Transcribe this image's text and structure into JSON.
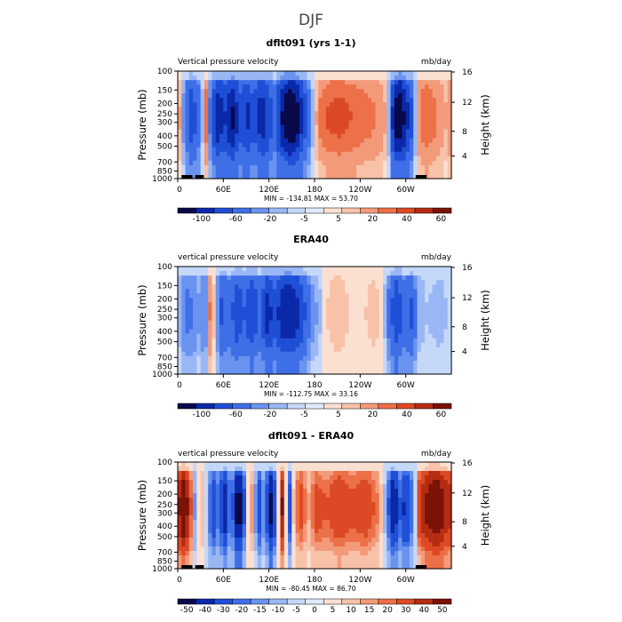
{
  "title": "DJF",
  "colors": {
    "blues": [
      "#08084a",
      "#0b28a8",
      "#1f4fd6",
      "#3f6fe6",
      "#6a93ef",
      "#9ab7f5",
      "#c6d8fa",
      "#dfeafc"
    ],
    "reds": [
      "#fbe0d2",
      "#f8c2a8",
      "#f39a7a",
      "#ec7048",
      "#dc4a25",
      "#b52c12",
      "#7a1206"
    ],
    "nodata": "#cfe2fa"
  },
  "chart_data": [
    {
      "type": "heatmap",
      "title": "dflt091 (yrs 1-1)",
      "variable_label": "Vertical pressure velocity",
      "units": "mb/day",
      "xlabel": "",
      "ylabel": "Pressure (mb)",
      "ylabel_right": "Height (km)",
      "x_ticks": [
        "0",
        "60E",
        "120E",
        "180",
        "120W",
        "60W"
      ],
      "x_tick_values": [
        0,
        60,
        120,
        180,
        240,
        300
      ],
      "xlim": [
        0,
        360
      ],
      "y_ticks": [
        "100",
        "150",
        "200",
        "250",
        "300",
        "400",
        "500",
        "700",
        "850",
        "1000"
      ],
      "y_tick_values": [
        100,
        150,
        200,
        250,
        300,
        400,
        500,
        700,
        850,
        1000
      ],
      "ylim": [
        1000,
        100
      ],
      "y_right_ticks": [
        "16",
        "12",
        "8",
        "4"
      ],
      "y_right_values": [
        16,
        12,
        8,
        4
      ],
      "min_max_text": "MIN = -134.81   MAX =  53.70",
      "min": -134.81,
      "max": 53.7,
      "colorbar_labels": [
        "-100",
        "-60",
        "-20",
        "-5",
        "5",
        "20",
        "40",
        "60"
      ],
      "colorbar_levels": [
        -100,
        -80,
        -60,
        -40,
        -20,
        -10,
        -5,
        0,
        5,
        10,
        20,
        30,
        40,
        50,
        60
      ],
      "lon_profile": [
        [
          0,
          22
        ],
        [
          8,
          -15
        ],
        [
          18,
          -55
        ],
        [
          26,
          -35
        ],
        [
          32,
          -10
        ],
        [
          38,
          30
        ],
        [
          44,
          -40
        ],
        [
          52,
          -75
        ],
        [
          62,
          -60
        ],
        [
          72,
          -85
        ],
        [
          82,
          -50
        ],
        [
          92,
          -65
        ],
        [
          100,
          -45
        ],
        [
          110,
          -75
        ],
        [
          120,
          -55
        ],
        [
          128,
          -30
        ],
        [
          134,
          -70
        ],
        [
          142,
          -95
        ],
        [
          150,
          -110
        ],
        [
          158,
          -85
        ],
        [
          166,
          -55
        ],
        [
          172,
          -30
        ],
        [
          178,
          -5
        ],
        [
          186,
          22
        ],
        [
          198,
          32
        ],
        [
          212,
          35
        ],
        [
          228,
          30
        ],
        [
          245,
          25
        ],
        [
          262,
          20
        ],
        [
          276,
          8
        ],
        [
          282,
          -60
        ],
        [
          290,
          -105
        ],
        [
          298,
          -80
        ],
        [
          308,
          -45
        ],
        [
          316,
          18
        ],
        [
          326,
          30
        ],
        [
          340,
          22
        ],
        [
          352,
          10
        ],
        [
          360,
          22
        ]
      ]
    },
    {
      "type": "heatmap",
      "title": "ERA40",
      "variable_label": "vertical pressure velocity",
      "units": "mb/day",
      "xlabel": "",
      "ylabel": "Pressure (mb)",
      "ylabel_right": "Height (km)",
      "x_ticks": [
        "0",
        "60E",
        "120E",
        "180",
        "120W",
        "60W"
      ],
      "x_tick_values": [
        0,
        60,
        120,
        180,
        240,
        300
      ],
      "xlim": [
        0,
        360
      ],
      "y_ticks": [
        "100",
        "150",
        "200",
        "250",
        "300",
        "400",
        "500",
        "700",
        "850",
        "1000"
      ],
      "y_tick_values": [
        100,
        150,
        200,
        250,
        300,
        400,
        500,
        700,
        850,
        1000
      ],
      "ylim": [
        1000,
        100
      ],
      "y_right_ticks": [
        "16",
        "12",
        "8",
        "4"
      ],
      "y_right_values": [
        16,
        12,
        8,
        4
      ],
      "min_max_text": "MIN = -112.75   MAX =  33.16",
      "min": -112.75,
      "max": 33.16,
      "colorbar_labels": [
        "-100",
        "-60",
        "-20",
        "-5",
        "5",
        "20",
        "40",
        "60"
      ],
      "colorbar_levels": [
        -100,
        -80,
        -60,
        -40,
        -20,
        -10,
        -5,
        0,
        5,
        10,
        20,
        30,
        40,
        50,
        60
      ],
      "lon_profile": [
        [
          0,
          -3
        ],
        [
          10,
          -25
        ],
        [
          22,
          -20
        ],
        [
          30,
          -8
        ],
        [
          36,
          -30
        ],
        [
          42,
          22
        ],
        [
          48,
          5
        ],
        [
          58,
          -45
        ],
        [
          68,
          -30
        ],
        [
          78,
          -55
        ],
        [
          88,
          -40
        ],
        [
          98,
          -60
        ],
        [
          108,
          -35
        ],
        [
          118,
          -70
        ],
        [
          128,
          -50
        ],
        [
          138,
          -75
        ],
        [
          148,
          -80
        ],
        [
          158,
          -65
        ],
        [
          168,
          -40
        ],
        [
          176,
          -15
        ],
        [
          186,
          -8
        ],
        [
          196,
          5
        ],
        [
          210,
          10
        ],
        [
          225,
          5
        ],
        [
          240,
          3
        ],
        [
          258,
          8
        ],
        [
          270,
          3
        ],
        [
          280,
          -35
        ],
        [
          288,
          -60
        ],
        [
          298,
          -30
        ],
        [
          308,
          -45
        ],
        [
          316,
          -10
        ],
        [
          328,
          -5
        ],
        [
          345,
          -8
        ],
        [
          360,
          -3
        ]
      ]
    },
    {
      "type": "heatmap",
      "title": "dflt091 - ERA40",
      "variable_label": "vertical pressure velocity",
      "units": "mb/day",
      "xlabel": "",
      "ylabel": "Pressure (mb)",
      "ylabel_right": "Height (km)",
      "x_ticks": [
        "0",
        "60E",
        "120E",
        "180",
        "120W",
        "60W"
      ],
      "x_tick_values": [
        0,
        60,
        120,
        180,
        240,
        300
      ],
      "xlim": [
        0,
        360
      ],
      "y_ticks": [
        "100",
        "150",
        "200",
        "250",
        "300",
        "400",
        "500",
        "700",
        "850",
        "1000"
      ],
      "y_tick_values": [
        100,
        150,
        200,
        250,
        300,
        400,
        500,
        700,
        850,
        1000
      ],
      "ylim": [
        1000,
        100
      ],
      "y_right_ticks": [
        "16",
        "12",
        "8",
        "4"
      ],
      "y_right_values": [
        16,
        12,
        8,
        4
      ],
      "min_max_text": "MIN = -80.45   MAX =  86.70",
      "min": -80.45,
      "max": 86.7,
      "colorbar_labels": [
        "-50",
        "-40",
        "-30",
        "-20",
        "-15",
        "-10",
        "-5",
        "0",
        "5",
        "10",
        "15",
        "20",
        "30",
        "40",
        "50"
      ],
      "colorbar_levels": [
        -50,
        -40,
        -30,
        -20,
        -15,
        -10,
        -5,
        0,
        5,
        10,
        15,
        20,
        30,
        40,
        50
      ],
      "lon_profile": [
        [
          0,
          35
        ],
        [
          8,
          55
        ],
        [
          16,
          30
        ],
        [
          24,
          -20
        ],
        [
          30,
          15
        ],
        [
          38,
          -5
        ],
        [
          46,
          -30
        ],
        [
          54,
          -15
        ],
        [
          62,
          -40
        ],
        [
          70,
          -10
        ],
        [
          80,
          -55
        ],
        [
          88,
          -20
        ],
        [
          96,
          20
        ],
        [
          106,
          -30
        ],
        [
          114,
          -10
        ],
        [
          122,
          -45
        ],
        [
          130,
          -20
        ],
        [
          138,
          45
        ],
        [
          146,
          -35
        ],
        [
          154,
          15
        ],
        [
          162,
          25
        ],
        [
          172,
          10
        ],
        [
          182,
          25
        ],
        [
          196,
          20
        ],
        [
          212,
          30
        ],
        [
          230,
          22
        ],
        [
          248,
          28
        ],
        [
          264,
          15
        ],
        [
          276,
          -15
        ],
        [
          284,
          -45
        ],
        [
          292,
          -20
        ],
        [
          300,
          -35
        ],
        [
          310,
          -15
        ],
        [
          318,
          30
        ],
        [
          328,
          45
        ],
        [
          340,
          55
        ],
        [
          352,
          40
        ],
        [
          360,
          35
        ]
      ]
    }
  ]
}
